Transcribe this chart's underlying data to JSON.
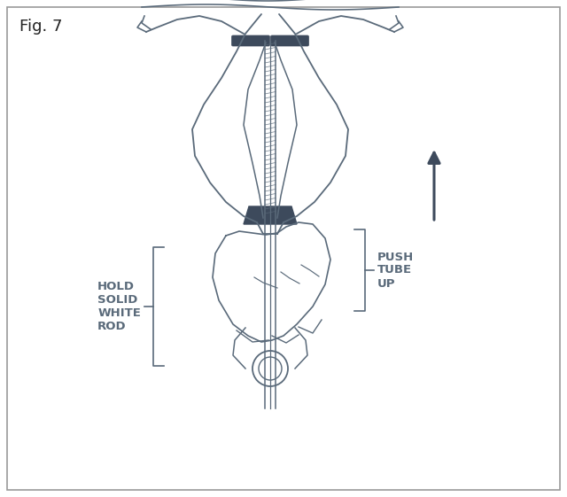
{
  "title": "Fig. 7",
  "background_color": "#ffffff",
  "border_color": "#aaaaaa",
  "line_color": "#5a6a7a",
  "dark_color": "#3d4a5c",
  "text_color": "#5a6a7a",
  "label_hold": "HOLD\nSOLID\nWHITE\nROD",
  "label_push": "PUSH\nTUBE\nUP",
  "fig_width": 6.4,
  "fig_height": 5.61
}
